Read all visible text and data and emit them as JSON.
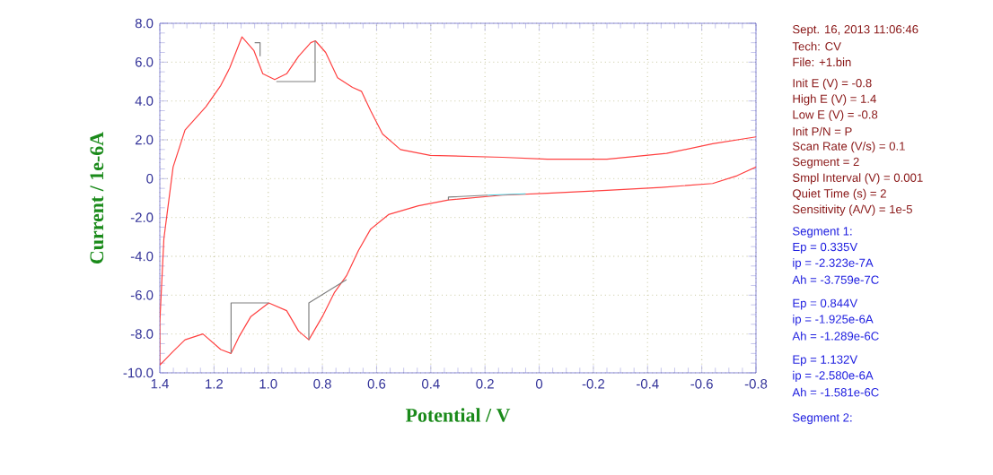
{
  "chart_data": {
    "type": "line",
    "xlabel": "Potential / V",
    "ylabel": "Current / 1e-6A",
    "xlim": [
      1.4,
      -0.8
    ],
    "ylim": [
      -10,
      8
    ],
    "xticks": [
      1.4,
      1.2,
      {
        "value": 1,
        "label": "1.0"
      },
      0.8,
      0.6,
      0.4,
      0.2,
      0,
      -0.2,
      -0.4,
      -0.6,
      -0.8
    ],
    "yticks": [
      {
        "value": 8,
        "label": "8.0"
      },
      {
        "value": 6,
        "label": "6.0"
      },
      {
        "value": 4,
        "label": "4.0"
      },
      {
        "value": 2,
        "label": "2.0"
      },
      0,
      {
        "value": -2,
        "label": "-2.0"
      },
      {
        "value": -4,
        "label": "-4.0"
      },
      {
        "value": -6,
        "label": "-6.0"
      },
      {
        "value": -8,
        "label": "-8.0"
      },
      {
        "value": -10,
        "label": "-10.0"
      }
    ],
    "grid": true,
    "series": [
      {
        "color": "#ff4040",
        "x": [
          -0.8,
          -0.64,
          -0.47,
          -0.25,
          -0.03,
          0.136,
          0.402,
          0.512,
          0.578,
          0.622,
          0.656,
          0.689,
          0.744,
          0.788,
          0.826,
          0.843,
          0.888,
          0.932,
          0.976,
          1.02,
          1.053,
          1.097,
          1.142,
          1.175,
          1.23,
          1.307,
          1.351,
          1.385,
          1.4,
          1.4,
          1.351,
          1.307,
          1.241,
          1.175,
          1.137,
          1.108,
          1.064,
          0.998,
          0.932,
          0.888,
          0.85,
          0.8,
          0.755,
          0.711,
          0.667,
          0.622,
          0.556,
          0.446,
          0.335,
          0.136,
          -0.03,
          -0.25,
          -0.45,
          -0.64,
          -0.73,
          -0.8
        ],
        "values": [
          2.15,
          1.8,
          1.3,
          1.0,
          1.0,
          1.1,
          1.2,
          1.5,
          2.3,
          3.5,
          4.5,
          4.7,
          5.2,
          6.5,
          7.1,
          7.0,
          6.3,
          5.4,
          5.1,
          5.4,
          6.6,
          7.3,
          5.7,
          4.8,
          3.7,
          2.5,
          0.6,
          -3.1,
          -7.4,
          -9.6,
          -8.9,
          -8.3,
          -8.0,
          -8.8,
          -9.0,
          -8.15,
          -7.1,
          -6.4,
          -6.8,
          -7.85,
          -8.3,
          -7.1,
          -5.85,
          -5.0,
          -3.7,
          -2.6,
          -1.85,
          -1.4,
          -1.1,
          -0.85,
          -0.75,
          -0.6,
          -0.45,
          -0.25,
          0.15,
          0.6
        ]
      },
      {
        "color": "#808080",
        "x": [
          0.97,
          0.827,
          0.827,
          null,
          1.05,
          1.03,
          1.03,
          null,
          1.137,
          1.137,
          0.998,
          null,
          0.85,
          0.85,
          0.711,
          null,
          0.335,
          0.335,
          0.19
        ],
        "values": [
          5.0,
          5.0,
          7.1,
          null,
          7.0,
          7.0,
          6.3,
          null,
          -9.0,
          -6.4,
          -6.4,
          null,
          -8.3,
          -6.4,
          -5.2,
          null,
          -1.1,
          -0.95,
          -0.85
        ]
      },
      {
        "color": "#40d0e0",
        "x": [
          0.19,
          0.05
        ],
        "values": [
          -0.85,
          -0.78
        ]
      }
    ],
    "annotations": [
      "Sept. 16, 2013   11:06:46",
      "Tech: CV",
      "File: +1.bin",
      "Init E (V) = -0.8",
      "High E (V) = 1.4",
      "Low E (V) = -0.8",
      "Init P/N = P",
      "Scan Rate (V/s) = 0.1",
      "Segment = 2",
      "Smpl Interval (V) = 0.001",
      "Quiet Time (s) = 2",
      "Sensitivity (A/V) = 1e-5",
      "Segment 1:",
      "Ep = 0.335V",
      "ip = -2.323e-7A",
      "Ah = -3.759e-7C",
      "Ep = 0.844V",
      "ip = -1.925e-6A",
      "Ah = -1.289e-6C",
      "Ep = 1.132V",
      "ip = -2.580e-6A",
      "Ah = -1.581e-6C",
      "Segment 2:"
    ]
  }
}
